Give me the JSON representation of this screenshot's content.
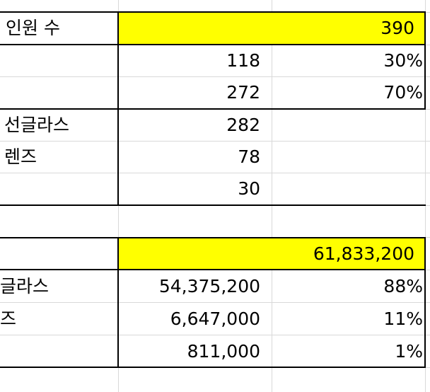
{
  "colors": {
    "highlight": "#ffff00",
    "gridline": "#d9d9d9",
    "border": "#000000"
  },
  "table1": {
    "header": {
      "label": "인원 수",
      "total": "390"
    },
    "rows": [
      {
        "label": "",
        "count": "118",
        "pct": "30%"
      },
      {
        "label": "",
        "count": "272",
        "pct": "70%"
      },
      {
        "label": "선글라스",
        "count": "282",
        "pct": ""
      },
      {
        "label": "렌즈",
        "count": "78",
        "pct": ""
      },
      {
        "label": "",
        "count": "30",
        "pct": ""
      }
    ]
  },
  "table2": {
    "header": {
      "label": "",
      "total": "61,833,200"
    },
    "rows": [
      {
        "label": "글라스",
        "amount": "54,375,200",
        "pct": "88%"
      },
      {
        "label": "즈",
        "amount": "6,647,000",
        "pct": "11%"
      },
      {
        "label": "",
        "amount": "811,000",
        "pct": "1%"
      }
    ]
  }
}
